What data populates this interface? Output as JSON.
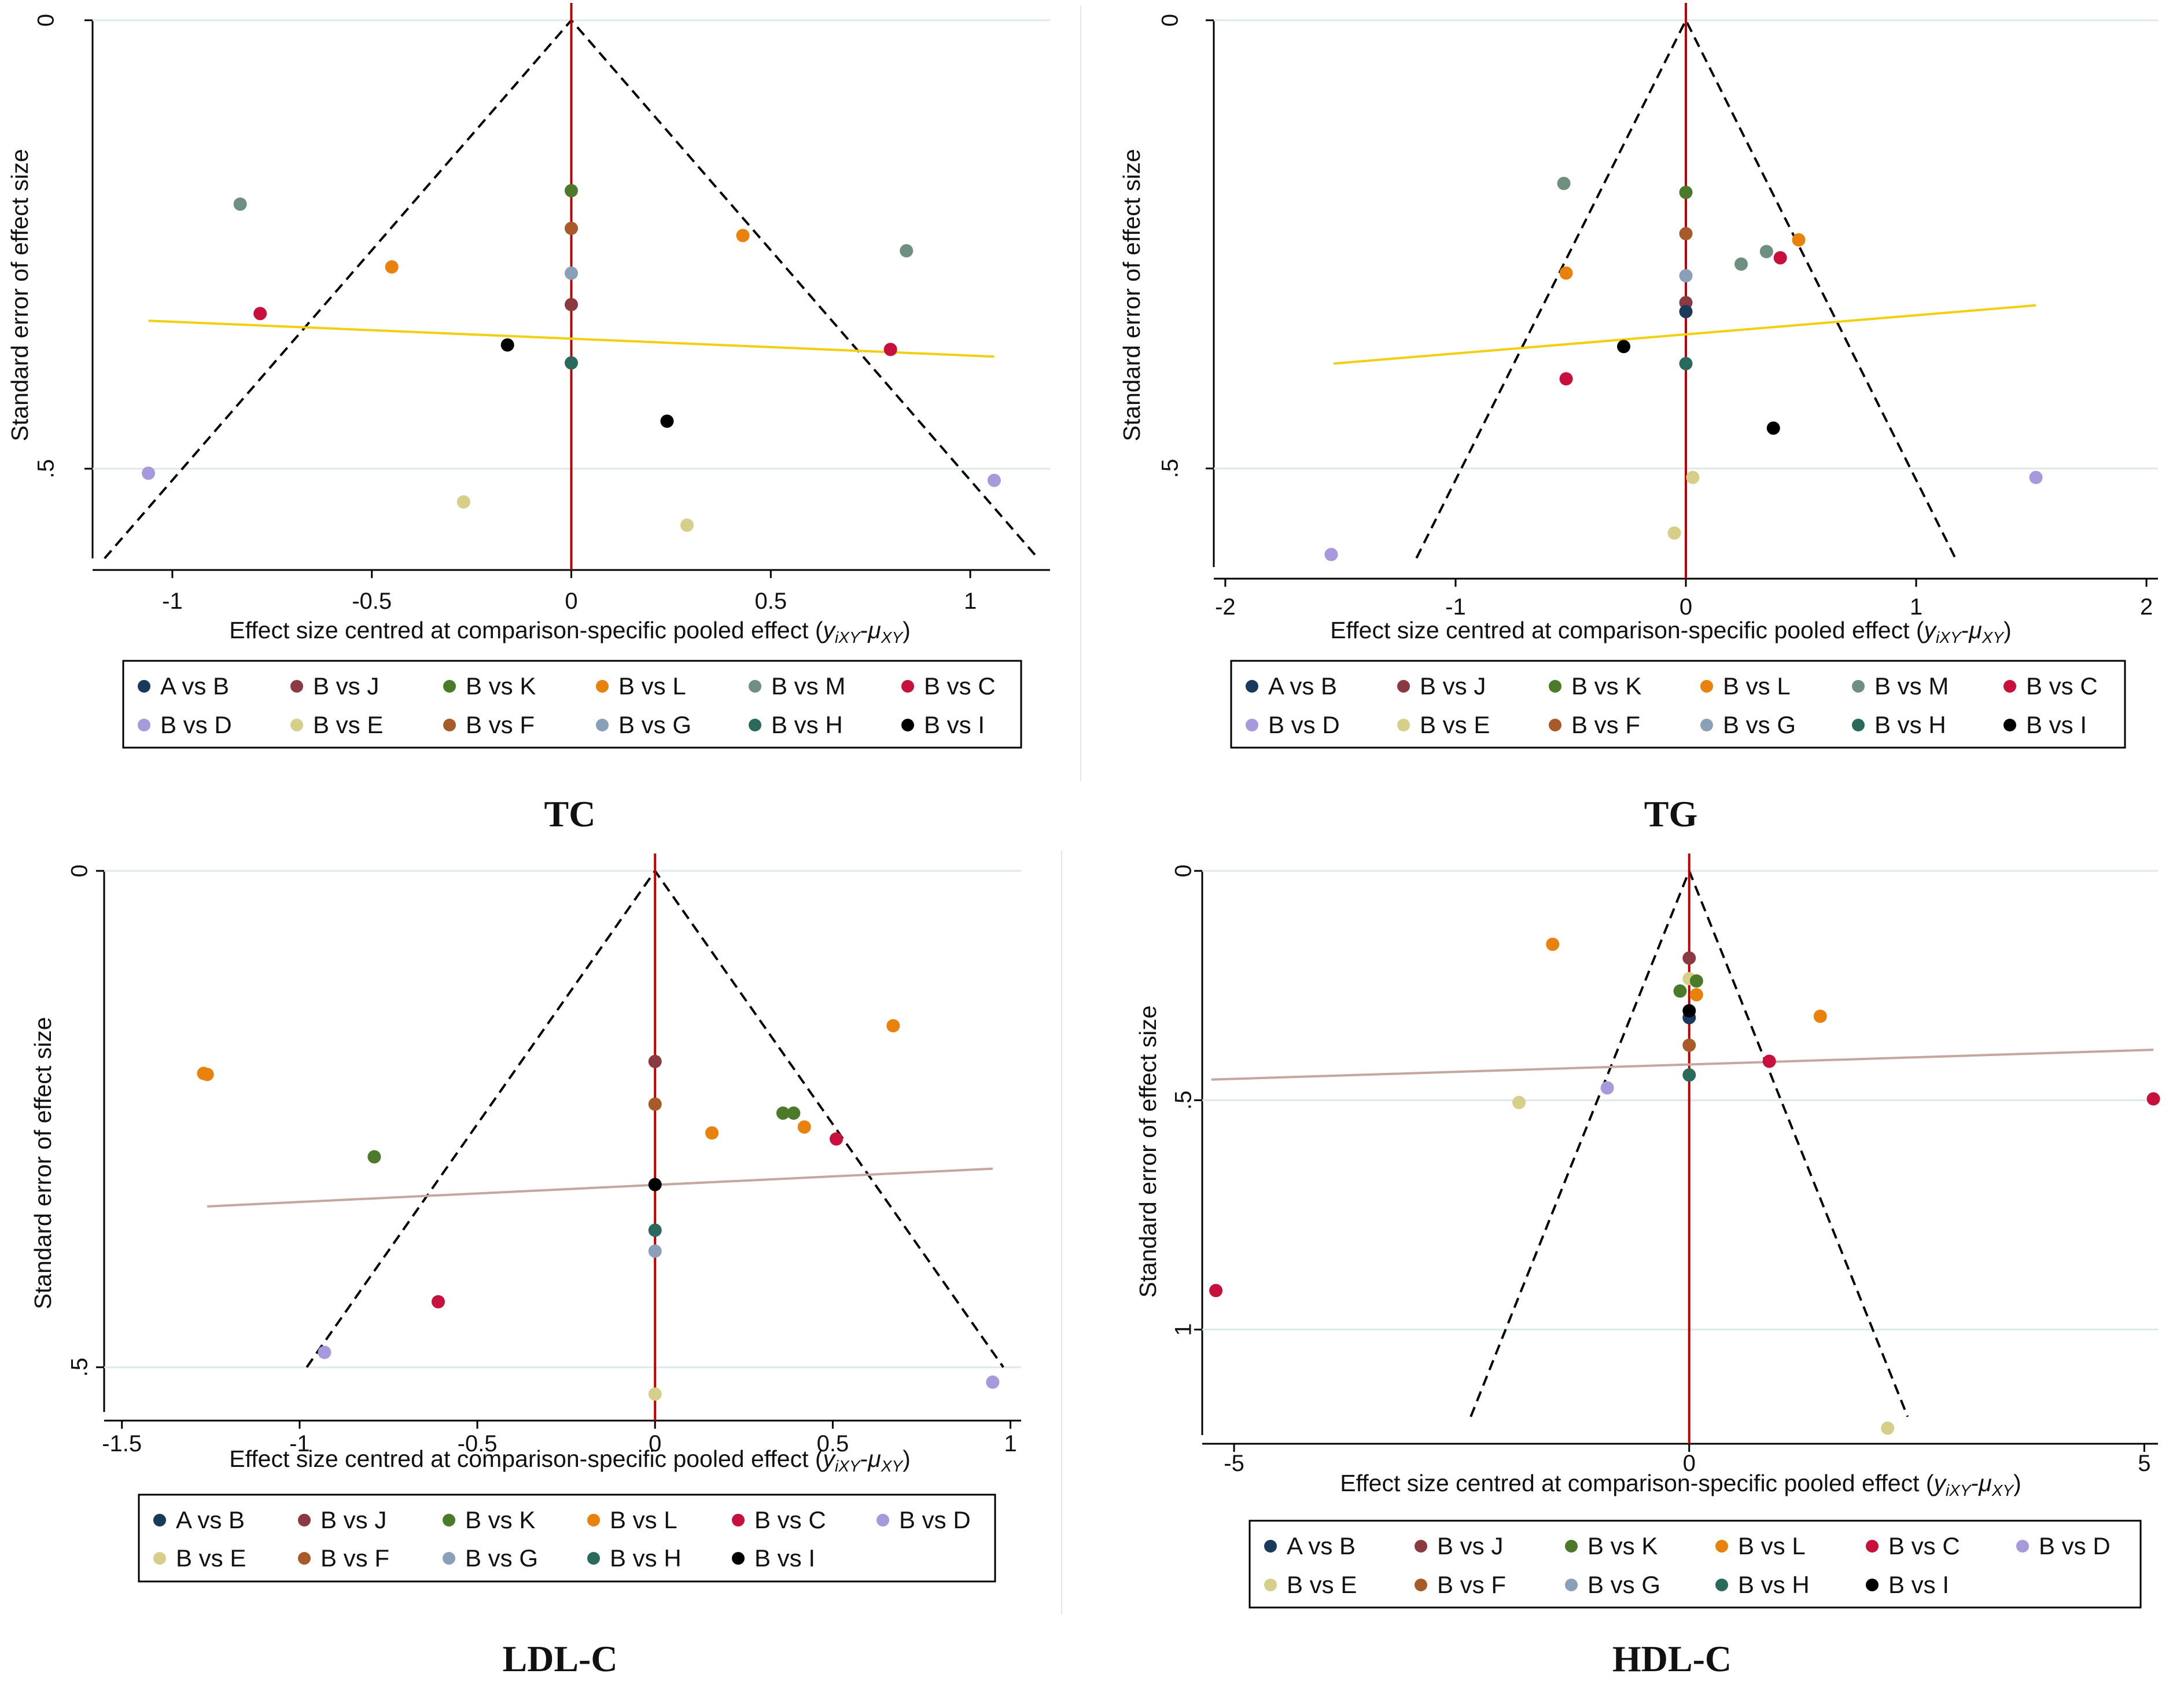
{
  "colors": {
    "A vs B": "#1a3a5c",
    "B vs J": "#8b3a42",
    "B vs K": "#4a7a2a",
    "B vs L": "#e8820c",
    "B vs M": "#6f8f80",
    "B vs C": "#c8103c",
    "B vs D": "#a898dc",
    "B vs E": "#d6cf8a",
    "B vs F": "#a85a2a",
    "B vs G": "#8aa0b8",
    "B vs H": "#2a6a5c",
    "B vs I": "#000000",
    "funnel": "#000000",
    "null_line": "#c00000",
    "gridline": "#dde8e8"
  },
  "panels": [
    {
      "caption": "TC",
      "xlabel": "Effect size centred at comparison-specific pooled effect (",
      "xlabel_math": "y",
      "xlabel_sub": "iXY",
      "xlabel_mid": "-",
      "xlabel_mu": "μ",
      "xlabel_mu_sub": "XY",
      "xlabel_end": ")",
      "ylabel": "Standard error of effect size",
      "ylabel_style": "teal",
      "reg_color": "#f0d010",
      "chart_data": {
        "type": "scatter",
        "title": "TC",
        "xlim": [
          -1.2,
          1.2
        ],
        "ylim": [
          0,
          0.6
        ],
        "xticks": [
          -1,
          -0.5,
          0,
          0.5,
          1
        ],
        "xtick_labels": [
          "-1",
          "-0.5",
          "0",
          "0.5",
          "1"
        ],
        "yticks": [
          0,
          0.5
        ],
        "ytick_labels": [
          "0",
          ".5"
        ],
        "funnel": {
          "apex": [
            0,
            0
          ],
          "left_end": [
            -1.17,
            0.6
          ],
          "right_end": [
            1.17,
            0.6
          ]
        },
        "regression": {
          "x": [
            -1.06,
            1.06
          ],
          "y": [
            0.335,
            0.375
          ]
        },
        "points": [
          {
            "series": "B vs M",
            "x": -0.83,
            "y": 0.205
          },
          {
            "series": "B vs K",
            "x": 0.0,
            "y": 0.19
          },
          {
            "series": "B vs F",
            "x": 0.0,
            "y": 0.232
          },
          {
            "series": "B vs L",
            "x": 0.43,
            "y": 0.24
          },
          {
            "series": "B vs M",
            "x": 0.84,
            "y": 0.257
          },
          {
            "series": "B vs L",
            "x": -0.45,
            "y": 0.275
          },
          {
            "series": "B vs G",
            "x": 0.0,
            "y": 0.282
          },
          {
            "series": "B vs J",
            "x": 0.0,
            "y": 0.317
          },
          {
            "series": "B vs C",
            "x": -0.78,
            "y": 0.327
          },
          {
            "series": "B vs I",
            "x": -0.16,
            "y": 0.362
          },
          {
            "series": "B vs C",
            "x": 0.8,
            "y": 0.367
          },
          {
            "series": "B vs H",
            "x": 0.0,
            "y": 0.382
          },
          {
            "series": "B vs I",
            "x": 0.24,
            "y": 0.447
          },
          {
            "series": "B vs D",
            "x": -1.06,
            "y": 0.505
          },
          {
            "series": "B vs D",
            "x": 1.06,
            "y": 0.513
          },
          {
            "series": "B vs E",
            "x": -0.27,
            "y": 0.537
          },
          {
            "series": "B vs E",
            "x": 0.29,
            "y": 0.563
          }
        ]
      },
      "legend": [
        "A vs B",
        "B vs J",
        "B vs K",
        "B vs L",
        "B vs M",
        "B vs C",
        "B vs D",
        "B vs E",
        "B vs F",
        "B vs G",
        "B vs H",
        "B vs I"
      ]
    },
    {
      "caption": "TG",
      "xlabel": "Effect size centred at comparison-specific pooled effect (",
      "xlabel_math": "y",
      "xlabel_sub": "iXY",
      "xlabel_mid": "-",
      "xlabel_mu": "μ",
      "xlabel_mu_sub": "XY",
      "xlabel_end": ")",
      "ylabel": "Standard error of effect size",
      "ylabel_style": "teal",
      "reg_color": "#f0d010",
      "chart_data": {
        "type": "scatter",
        "title": "TG",
        "xlim": [
          -2.05,
          2.05
        ],
        "ylim": [
          0,
          0.61
        ],
        "xticks": [
          -2,
          -1,
          0,
          1,
          2
        ],
        "xtick_labels": [
          "-2",
          "-1",
          "0",
          "1",
          "2"
        ],
        "yticks": [
          0,
          0.5
        ],
        "ytick_labels": [
          "0",
          ".5"
        ],
        "funnel": {
          "apex": [
            0,
            0
          ],
          "left_end": [
            -1.17,
            0.6
          ],
          "right_end": [
            1.17,
            0.6
          ]
        },
        "regression": {
          "x": [
            -1.53,
            1.52
          ],
          "y": [
            0.383,
            0.318
          ]
        },
        "points": [
          {
            "series": "B vs M",
            "x": -0.53,
            "y": 0.182
          },
          {
            "series": "B vs K",
            "x": 0.0,
            "y": 0.192
          },
          {
            "series": "B vs F",
            "x": 0.0,
            "y": 0.238
          },
          {
            "series": "B vs L",
            "x": 0.49,
            "y": 0.245
          },
          {
            "series": "B vs M",
            "x": 0.35,
            "y": 0.258
          },
          {
            "series": "B vs C",
            "x": 0.41,
            "y": 0.265
          },
          {
            "series": "B vs M",
            "x": 0.24,
            "y": 0.272
          },
          {
            "series": "B vs L",
            "x": -0.52,
            "y": 0.282
          },
          {
            "series": "B vs G",
            "x": 0.0,
            "y": 0.285
          },
          {
            "series": "B vs J",
            "x": 0.0,
            "y": 0.315
          },
          {
            "series": "A vs B",
            "x": 0.0,
            "y": 0.325
          },
          {
            "series": "B vs I",
            "x": -0.27,
            "y": 0.364
          },
          {
            "series": "B vs H",
            "x": 0.0,
            "y": 0.383
          },
          {
            "series": "B vs C",
            "x": -0.52,
            "y": 0.4
          },
          {
            "series": "B vs I",
            "x": 0.38,
            "y": 0.455
          },
          {
            "series": "B vs E",
            "x": 0.03,
            "y": 0.51
          },
          {
            "series": "B vs D",
            "x": 1.52,
            "y": 0.51
          },
          {
            "series": "B vs E",
            "x": -0.05,
            "y": 0.572
          },
          {
            "series": "B vs D",
            "x": -1.54,
            "y": 0.596
          }
        ]
      },
      "legend": [
        "A vs B",
        "B vs J",
        "B vs K",
        "B vs L",
        "B vs M",
        "B vs C",
        "B vs D",
        "B vs E",
        "B vs F",
        "B vs G",
        "B vs H",
        "B vs I"
      ]
    },
    {
      "caption": "LDL-C",
      "xlabel": "Effect size centred at comparison-specific pooled effect (",
      "xlabel_math": "y",
      "xlabel_sub": "iXY",
      "xlabel_mid": "-",
      "xlabel_mu": "μ",
      "xlabel_mu_sub": "XY",
      "xlabel_end": ")",
      "ylabel": "Standard error of effect size",
      "ylabel_style": "plain",
      "reg_color": "#c4a8a0",
      "chart_data": {
        "type": "scatter",
        "title": "LDL-C",
        "xlim": [
          -1.55,
          1.03
        ],
        "ylim": [
          0,
          0.545
        ],
        "xticks": [
          -1.5,
          -1,
          -0.5,
          0,
          0.5,
          1
        ],
        "xtick_labels": [
          "-1.5",
          "-1",
          "-0.5",
          "0",
          "0.5",
          "1"
        ],
        "yticks": [
          0,
          0.5
        ],
        "ytick_labels": [
          "0",
          ".5"
        ],
        "funnel": {
          "apex": [
            0,
            0
          ],
          "left_end": [
            -0.98,
            0.5
          ],
          "right_end": [
            0.98,
            0.5
          ]
        },
        "regression": {
          "x": [
            -1.26,
            0.95
          ],
          "y": [
            0.338,
            0.3
          ]
        },
        "points": [
          {
            "series": "B vs L",
            "x": 0.67,
            "y": 0.156
          },
          {
            "series": "B vs J",
            "x": 0.0,
            "y": 0.192
          },
          {
            "series": "B vs L",
            "x": -1.26,
            "y": 0.205
          },
          {
            "series": "B vs L",
            "x": -1.27,
            "y": 0.204
          },
          {
            "series": "B vs F",
            "x": 0.0,
            "y": 0.235
          },
          {
            "series": "B vs K",
            "x": 0.36,
            "y": 0.244
          },
          {
            "series": "B vs K",
            "x": 0.39,
            "y": 0.244
          },
          {
            "series": "B vs L",
            "x": 0.42,
            "y": 0.258
          },
          {
            "series": "B vs L",
            "x": 0.16,
            "y": 0.264
          },
          {
            "series": "B vs C",
            "x": 0.51,
            "y": 0.27
          },
          {
            "series": "B vs K",
            "x": -0.79,
            "y": 0.288
          },
          {
            "series": "B vs I",
            "x": 0.0,
            "y": 0.316
          },
          {
            "series": "B vs H",
            "x": 0.0,
            "y": 0.362
          },
          {
            "series": "B vs G",
            "x": 0.0,
            "y": 0.383
          },
          {
            "series": "B vs C",
            "x": -0.61,
            "y": 0.434
          },
          {
            "series": "B vs D",
            "x": -0.93,
            "y": 0.485
          },
          {
            "series": "B vs D",
            "x": 0.95,
            "y": 0.515
          },
          {
            "series": "B vs E",
            "x": 0.0,
            "y": 0.527
          }
        ]
      },
      "legend": [
        "A vs B",
        "B vs J",
        "B vs K",
        "B vs L",
        "B vs C",
        "B vs D",
        "B vs E",
        "B vs F",
        "B vs G",
        "B vs H",
        "B vs I"
      ]
    },
    {
      "caption": "HDL-C",
      "xlabel": "Effect size centred at comparison-specific pooled effect (",
      "xlabel_math": "y",
      "xlabel_sub": "iXY",
      "xlabel_mid": "-",
      "xlabel_mu": "μ",
      "xlabel_mu_sub": "XY",
      "xlabel_end": ")",
      "ylabel": "Standard error of effect size",
      "ylabel_style": "plain",
      "reg_color": "#c4a8a0",
      "chart_data": {
        "type": "scatter",
        "title": "HDL-C",
        "xlim": [
          -5.35,
          5.15
        ],
        "ylim": [
          0,
          1.23
        ],
        "xticks": [
          -5,
          0,
          5
        ],
        "xtick_labels": [
          "-5",
          "0",
          "5"
        ],
        "yticks": [
          0,
          0.5,
          1
        ],
        "ytick_labels": [
          "0",
          ".5",
          "1"
        ],
        "funnel": {
          "apex": [
            0,
            0
          ],
          "left_end": [
            -2.4,
            1.19
          ],
          "right_end": [
            2.4,
            1.19
          ]
        },
        "regression": {
          "x": [
            -5.25,
            5.1
          ],
          "y": [
            0.455,
            0.39
          ]
        },
        "points": [
          {
            "series": "B vs L",
            "x": -1.5,
            "y": 0.16
          },
          {
            "series": "B vs J",
            "x": 0.0,
            "y": 0.19
          },
          {
            "series": "B vs E",
            "x": 0.0,
            "y": 0.235
          },
          {
            "series": "B vs K",
            "x": 0.08,
            "y": 0.24
          },
          {
            "series": "B vs K",
            "x": -0.1,
            "y": 0.262
          },
          {
            "series": "B vs L",
            "x": 0.08,
            "y": 0.27
          },
          {
            "series": "A vs B",
            "x": 0.0,
            "y": 0.32
          },
          {
            "series": "B vs I",
            "x": 0.0,
            "y": 0.305
          },
          {
            "series": "B vs L",
            "x": 1.44,
            "y": 0.317
          },
          {
            "series": "B vs F",
            "x": 0.0,
            "y": 0.38
          },
          {
            "series": "B vs C",
            "x": 0.88,
            "y": 0.415
          },
          {
            "series": "B vs H",
            "x": 0.0,
            "y": 0.445
          },
          {
            "series": "B vs D",
            "x": -0.9,
            "y": 0.473
          },
          {
            "series": "B vs E",
            "x": -1.87,
            "y": 0.505
          },
          {
            "series": "B vs C",
            "x": 5.1,
            "y": 0.497
          },
          {
            "series": "B vs C",
            "x": -5.2,
            "y": 0.915
          },
          {
            "series": "B vs E",
            "x": 2.18,
            "y": 1.215
          }
        ]
      },
      "legend": [
        "A vs B",
        "B vs J",
        "B vs K",
        "B vs L",
        "B vs C",
        "B vs D",
        "B vs E",
        "B vs F",
        "B vs G",
        "B vs H",
        "B vs I"
      ]
    }
  ]
}
